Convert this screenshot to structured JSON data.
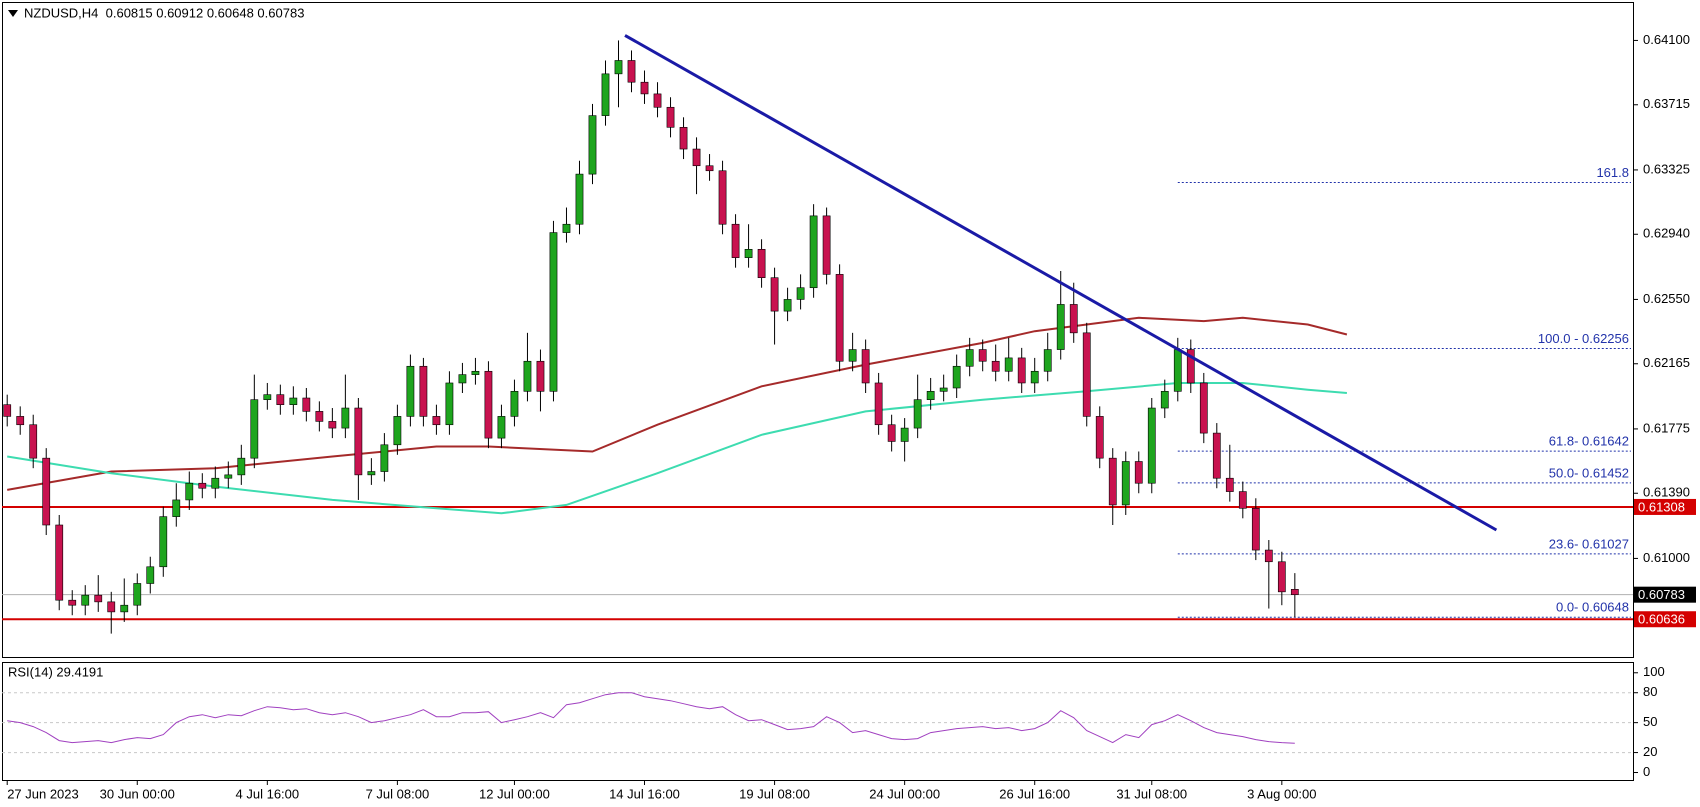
{
  "chart_data": {
    "type": "candlestick",
    "title": "NZDUSD,H4  0.60815 0.60912 0.60648 0.60783",
    "xlim": [
      -0.4,
      125
    ],
    "xticks": [
      {
        "value": 0,
        "label": "27 Jun 2023"
      },
      {
        "value": 10,
        "label": "30 Jun 00:00"
      },
      {
        "value": 20,
        "label": "4 Jul 16:00"
      },
      {
        "value": 30,
        "label": "7 Jul 08:00"
      },
      {
        "value": 39,
        "label": "12 Jul 00:00"
      },
      {
        "value": 49,
        "label": "14 Jul 16:00"
      },
      {
        "value": 59,
        "label": "19 Jul 08:00"
      },
      {
        "value": 69,
        "label": "24 Jul 00:00"
      },
      {
        "value": 79,
        "label": "26 Jul 16:00"
      },
      {
        "value": 88,
        "label": "31 Jul 08:00"
      },
      {
        "value": 98,
        "label": "3 Aug 00:00"
      }
    ],
    "ylim": [
      0.6041,
      0.6433
    ],
    "yticks": [
      {
        "value": 0.641,
        "label": "0.64100"
      },
      0.63715,
      0.63325,
      {
        "value": 0.6294,
        "label": "0.62940"
      },
      {
        "value": 0.6255,
        "label": "0.62550"
      },
      0.62165,
      0.61775,
      {
        "value": 0.6139,
        "label": "0.61390"
      },
      {
        "value": 0.61,
        "label": "0.61000"
      }
    ],
    "up_color": "#1ea51e",
    "down_color": "#c8124f",
    "open": [
      0.6192,
      0.6185,
      0.618,
      0.616,
      0.612,
      0.6075,
      0.6072,
      0.6078,
      0.6074,
      0.6068,
      0.6072,
      0.6085,
      0.6095,
      0.6125,
      0.6135,
      0.6145,
      0.6142,
      0.6148,
      0.615,
      0.616,
      0.6195,
      0.6198,
      0.6192,
      0.6196,
      0.6188,
      0.6182,
      0.6178,
      0.619,
      0.615,
      0.6152,
      0.6168,
      0.6185,
      0.6215,
      0.6185,
      0.618,
      0.6205,
      0.621,
      0.6212,
      0.6172,
      0.6185,
      0.62,
      0.6218,
      0.62,
      0.6295,
      0.63,
      0.633,
      0.6365,
      0.639,
      0.6398,
      0.6385,
      0.6378,
      0.637,
      0.6358,
      0.6345,
      0.6335,
      0.6332,
      0.63,
      0.628,
      0.6285,
      0.6268,
      0.6248,
      0.6255,
      0.6262,
      0.6305,
      0.627,
      0.6218,
      0.6225,
      0.6205,
      0.618,
      0.617,
      0.6178,
      0.6195,
      0.62,
      0.6202,
      0.6215,
      0.6225,
      0.6218,
      0.6212,
      0.622,
      0.6205,
      0.6212,
      0.6225,
      0.6252,
      0.6235,
      0.6185,
      0.616,
      0.6132,
      0.6158,
      0.6145,
      0.619,
      0.62,
      0.6225,
      0.6205,
      0.6175,
      0.6148,
      0.614,
      0.613,
      0.6105,
      0.6098,
      0.60815
    ],
    "high": [
      0.6198,
      0.6191,
      0.6186,
      0.6166,
      0.6126,
      0.6081,
      0.6084,
      0.609,
      0.608,
      0.6088,
      0.6091,
      0.6101,
      0.6131,
      0.6145,
      0.6152,
      0.6151,
      0.6155,
      0.6158,
      0.6168,
      0.621,
      0.6205,
      0.6204,
      0.6203,
      0.6202,
      0.6194,
      0.619,
      0.621,
      0.6196,
      0.616,
      0.6175,
      0.6192,
      0.6222,
      0.622,
      0.6192,
      0.6212,
      0.6217,
      0.622,
      0.6218,
      0.6192,
      0.6207,
      0.6235,
      0.6225,
      0.6302,
      0.631,
      0.6338,
      0.6372,
      0.6398,
      0.641,
      0.6404,
      0.6392,
      0.6385,
      0.6376,
      0.6364,
      0.6352,
      0.6342,
      0.6338,
      0.6306,
      0.63,
      0.6291,
      0.6274,
      0.6262,
      0.627,
      0.6312,
      0.631,
      0.6276,
      0.6235,
      0.6231,
      0.6211,
      0.6186,
      0.6184,
      0.621,
      0.6208,
      0.621,
      0.6222,
      0.6232,
      0.6231,
      0.6228,
      0.6232,
      0.6226,
      0.622,
      0.6235,
      0.6272,
      0.6265,
      0.6241,
      0.6191,
      0.6166,
      0.6164,
      0.6164,
      0.6196,
      0.6207,
      0.6232,
      0.6231,
      0.6211,
      0.6181,
      0.6168,
      0.6146,
      0.6136,
      0.6111,
      0.6104,
      0.60912
    ],
    "low": [
      0.6179,
      0.6174,
      0.6154,
      0.6114,
      0.6069,
      0.6066,
      0.6066,
      0.6068,
      0.6055,
      0.6062,
      0.6066,
      0.6079,
      0.6089,
      0.6119,
      0.6129,
      0.6136,
      0.6136,
      0.6142,
      0.6144,
      0.6154,
      0.6189,
      0.6186,
      0.6186,
      0.6182,
      0.6176,
      0.6172,
      0.6172,
      0.6135,
      0.6144,
      0.6146,
      0.6162,
      0.6179,
      0.6179,
      0.6174,
      0.6174,
      0.6199,
      0.6204,
      0.6166,
      0.6166,
      0.6179,
      0.6194,
      0.6188,
      0.6194,
      0.6289,
      0.6294,
      0.6324,
      0.6359,
      0.637,
      0.6379,
      0.6372,
      0.6364,
      0.6352,
      0.6339,
      0.6318,
      0.6326,
      0.6294,
      0.6274,
      0.6274,
      0.6262,
      0.6228,
      0.6242,
      0.6249,
      0.6256,
      0.6264,
      0.6212,
      0.6212,
      0.6199,
      0.6174,
      0.6164,
      0.6158,
      0.6172,
      0.6189,
      0.6194,
      0.6196,
      0.6209,
      0.6212,
      0.6206,
      0.6206,
      0.6199,
      0.6199,
      0.6206,
      0.6219,
      0.6229,
      0.6179,
      0.6154,
      0.612,
      0.6126,
      0.6139,
      0.6139,
      0.6184,
      0.6194,
      0.6199,
      0.6169,
      0.6142,
      0.6134,
      0.6124,
      0.6099,
      0.607,
      0.6072,
      0.60648
    ],
    "close": [
      0.6185,
      0.618,
      0.616,
      0.612,
      0.6075,
      0.6072,
      0.6078,
      0.6074,
      0.6068,
      0.6072,
      0.6085,
      0.6095,
      0.6125,
      0.6135,
      0.6145,
      0.6142,
      0.6148,
      0.615,
      0.616,
      0.6195,
      0.6198,
      0.6192,
      0.6196,
      0.6188,
      0.6182,
      0.6178,
      0.619,
      0.615,
      0.6152,
      0.6168,
      0.6185,
      0.6215,
      0.6185,
      0.618,
      0.6205,
      0.621,
      0.6212,
      0.6172,
      0.6185,
      0.62,
      0.6218,
      0.62,
      0.6295,
      0.63,
      0.633,
      0.6365,
      0.639,
      0.6398,
      0.6385,
      0.6378,
      0.637,
      0.6358,
      0.6345,
      0.6335,
      0.6332,
      0.63,
      0.628,
      0.6285,
      0.6268,
      0.6248,
      0.6255,
      0.6262,
      0.6305,
      0.627,
      0.6218,
      0.6225,
      0.6205,
      0.618,
      0.617,
      0.6178,
      0.6195,
      0.62,
      0.6202,
      0.6215,
      0.6225,
      0.6218,
      0.6212,
      0.622,
      0.6205,
      0.6212,
      0.6225,
      0.6252,
      0.6235,
      0.6185,
      0.616,
      0.6132,
      0.6158,
      0.6145,
      0.619,
      0.62,
      0.6225,
      0.6205,
      0.6175,
      0.6148,
      0.614,
      0.613,
      0.6105,
      0.6098,
      0.608,
      0.60783
    ],
    "moving_averages": [
      {
        "color": "#a52a2a",
        "x": [
          0,
          8,
          16,
          25,
          33,
          37,
          45,
          50,
          58,
          66,
          75,
          79,
          83,
          87,
          92,
          95,
          100,
          103
        ],
        "values": [
          0.6141,
          0.6152,
          0.6154,
          0.6161,
          0.6167,
          0.6167,
          0.6164,
          0.618,
          0.6203,
          0.6216,
          0.6229,
          0.6236,
          0.624,
          0.6244,
          0.6242,
          0.6244,
          0.624,
          0.6234
        ]
      },
      {
        "color": "#3ddcb0",
        "x": [
          0,
          8,
          16,
          25,
          33,
          38,
          43,
          50,
          58,
          66,
          75,
          83,
          90,
          95,
          100,
          103
        ],
        "values": [
          0.6161,
          0.6151,
          0.6143,
          0.6135,
          0.613,
          0.6127,
          0.6132,
          0.6151,
          0.6174,
          0.6188,
          0.6195,
          0.62,
          0.6205,
          0.6205,
          0.6201,
          0.6199
        ]
      }
    ],
    "trendline": {
      "color": "#1a1aa6",
      "x": [
        47.5,
        114.5
      ],
      "values": [
        0.6413,
        0.6117
      ]
    },
    "fibonacci": {
      "color": "#2233aa",
      "x_start": 90,
      "levels": [
        {
          "value": 0.6325,
          "label": "161.8"
        },
        {
          "value": 0.62256,
          "label": "100.0 - 0.62256"
        },
        {
          "value": 0.61642,
          "label": "61.8- 0.61642"
        },
        {
          "value": 0.61452,
          "label": "50.0- 0.61452"
        },
        {
          "value": 0.61027,
          "label": "23.6- 0.61027"
        },
        {
          "value": 0.60648,
          "label": "0.0- 0.60648"
        }
      ]
    },
    "levels": [
      {
        "value": 0.61308,
        "color": "#d40000"
      },
      {
        "value": 0.60636,
        "color": "#d40000"
      }
    ],
    "current_price": {
      "value": 0.60783,
      "color": "#000000"
    },
    "rsi": {
      "title": "RSI(14) 29.4191",
      "color": "#a040c0",
      "ylim": [
        -7.5,
        110.8
      ],
      "yticks": [
        100,
        80,
        50,
        20,
        0
      ],
      "values": [
        52,
        50,
        46,
        40,
        32,
        30,
        31,
        32,
        30,
        33,
        35,
        34,
        38,
        50,
        56,
        58,
        55,
        58,
        57,
        62,
        66,
        65,
        63,
        64,
        60,
        58,
        60,
        56,
        50,
        52,
        55,
        58,
        63,
        56,
        56,
        60,
        60,
        61,
        50,
        53,
        56,
        60,
        55,
        68,
        70,
        74,
        78,
        80,
        80,
        76,
        74,
        72,
        69,
        66,
        64,
        66,
        58,
        52,
        53,
        48,
        43,
        44,
        46,
        56,
        50,
        40,
        42,
        38,
        34,
        33,
        34,
        40,
        42,
        44,
        45,
        46,
        44,
        45,
        42,
        44,
        50,
        62,
        55,
        42,
        36,
        30,
        38,
        35,
        48,
        52,
        58,
        52,
        45,
        40,
        38,
        36,
        33,
        31,
        30,
        29.4191
      ]
    }
  }
}
